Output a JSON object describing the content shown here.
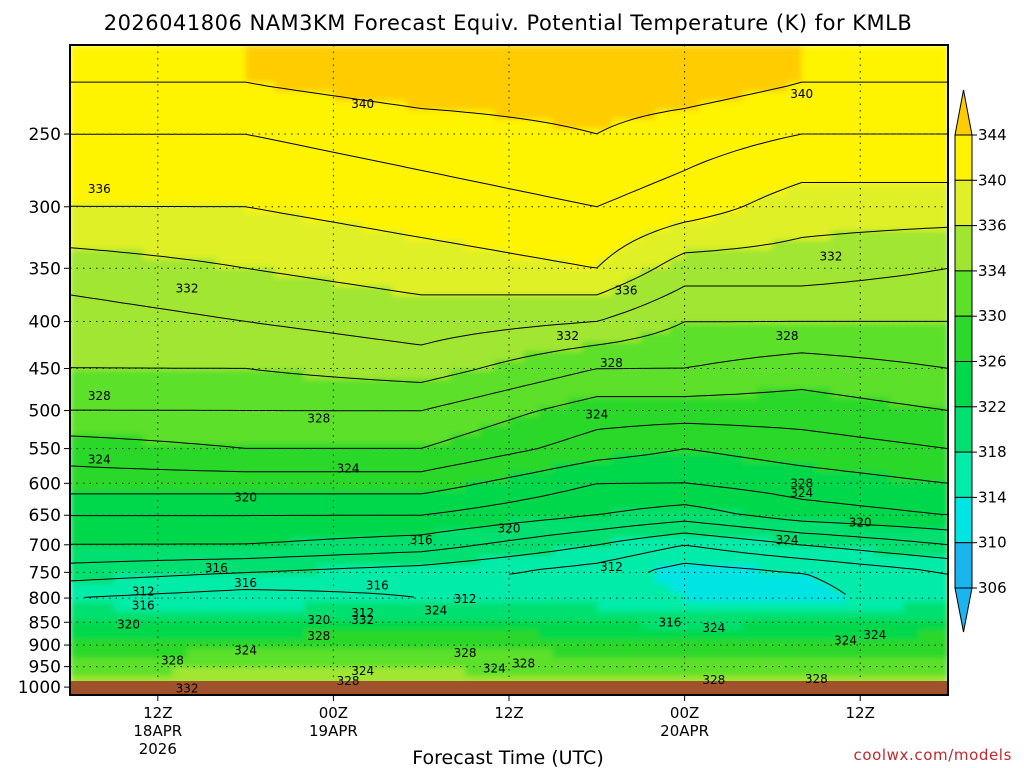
{
  "chart_data": {
    "type": "heatmap",
    "title": "2026041806 NAM3KM Forecast Equiv. Potential Temperature (K) for KMLB",
    "xlabel": "Forecast Time (UTC)",
    "ylabel": "",
    "y_axis": {
      "units": "hPa",
      "scale": "log",
      "inverted": true,
      "ticks": [
        250,
        300,
        350,
        400,
        450,
        500,
        550,
        600,
        650,
        700,
        750,
        800,
        850,
        900,
        950,
        1000
      ],
      "ylim": [
        1020,
        200
      ]
    },
    "x_axis": {
      "ticks": [
        {
          "line1": "12Z",
          "line2": "18APR",
          "line3": "2026",
          "hour": 6
        },
        {
          "line1": "00Z",
          "line2": "19APR",
          "line3": "",
          "hour": 18
        },
        {
          "line1": "12Z",
          "line2": "",
          "line3": "",
          "hour": 30
        },
        {
          "line1": "00Z",
          "line2": "20APR",
          "line3": "",
          "hour": 42
        },
        {
          "line1": "12Z",
          "line2": "",
          "line3": "",
          "hour": 54
        }
      ],
      "xlim_hours": [
        0,
        60
      ]
    },
    "colorbar": {
      "levels": [
        306,
        310,
        314,
        318,
        322,
        326,
        330,
        334,
        336,
        340,
        344
      ],
      "labels": [
        "306",
        "310",
        "314",
        "318",
        "322",
        "326",
        "330",
        "334",
        "336",
        "340",
        "344"
      ],
      "colors": [
        "#1ab4ee",
        "#00e4e4",
        "#00eca8",
        "#00e070",
        "#00d84c",
        "#2cd82c",
        "#5ce02a",
        "#a0e630",
        "#e0f028",
        "#fff400",
        "#ffcc00"
      ]
    },
    "series": [
      {
        "levels_hpa": [
          220,
          250,
          300,
          350,
          400,
          450,
          500,
          550,
          600,
          650,
          700,
          750,
          800,
          850,
          900,
          950,
          1000
        ],
        "profiles": [
          {
            "hour": 0,
            "theta_e": [
              340,
              338,
              336,
              333,
              331,
              330,
              328,
              325,
              323,
              320,
              318,
              315,
              312,
              318,
              324,
              328,
              332
            ]
          },
          {
            "hour": 12,
            "theta_e": [
              340,
              338,
              336,
              334,
              332,
              330,
              328,
              326,
              323,
              320,
              318,
              314,
              311,
              318,
              324,
              330,
              333
            ]
          },
          {
            "hour": 24,
            "theta_e": [
              341,
              339,
              337,
              335,
              333,
              331,
              328,
              326,
              323,
              320,
              317,
              313,
              312,
              320,
              326,
              330,
              332
            ]
          },
          {
            "hour": 36,
            "theta_e": [
              341,
              340,
              338,
              336,
              332,
              328,
              325,
              323,
              320,
              318,
              314,
              311,
              312,
              318,
              324,
              328,
              331
            ]
          },
          {
            "hour": 42,
            "theta_e": [
              341,
              339,
              337,
              333,
              330,
              328,
              325,
              322,
              320,
              317,
              312,
              309,
              310,
              316,
              324,
              328,
              331
            ]
          },
          {
            "hour": 50,
            "theta_e": [
              340,
              338,
              335,
              333,
              330,
              327,
              325,
              323,
              321,
              319,
              314,
              310,
              309,
              318,
              324,
              328,
              331
            ]
          },
          {
            "hour": 60,
            "theta_e": [
              340,
              338,
              335,
              332,
              330,
              328,
              326,
              324,
              322,
              320,
              316,
              312,
              312,
              320,
              324,
              328,
              331
            ]
          }
        ]
      }
    ],
    "contour_labels": [
      {
        "text": "340",
        "hour": 20,
        "p": 232
      },
      {
        "text": "340",
        "hour": 50,
        "p": 226
      },
      {
        "text": "336",
        "hour": 2,
        "p": 287
      },
      {
        "text": "336",
        "hour": 38,
        "p": 370
      },
      {
        "text": "332",
        "hour": 8,
        "p": 368
      },
      {
        "text": "332",
        "hour": 52,
        "p": 340
      },
      {
        "text": "332",
        "hour": 34,
        "p": 415
      },
      {
        "text": "328",
        "hour": 2,
        "p": 482
      },
      {
        "text": "328",
        "hour": 17,
        "p": 510
      },
      {
        "text": "328",
        "hour": 37,
        "p": 444
      },
      {
        "text": "328",
        "hour": 49,
        "p": 415
      },
      {
        "text": "324",
        "hour": 2,
        "p": 565
      },
      {
        "text": "324",
        "hour": 19,
        "p": 578
      },
      {
        "text": "324",
        "hour": 36,
        "p": 505
      },
      {
        "text": "320",
        "hour": 12,
        "p": 622
      },
      {
        "text": "320",
        "hour": 30,
        "p": 672
      },
      {
        "text": "320",
        "hour": 54,
        "p": 662
      },
      {
        "text": "316",
        "hour": 24,
        "p": 692
      },
      {
        "text": "316",
        "hour": 10,
        "p": 742
      },
      {
        "text": "316",
        "hour": 12,
        "p": 770
      },
      {
        "text": "312",
        "hour": 37,
        "p": 740
      },
      {
        "text": "312",
        "hour": 5,
        "p": 787
      },
      {
        "text": "312",
        "hour": 27,
        "p": 802
      },
      {
        "text": "316",
        "hour": 5,
        "p": 815
      },
      {
        "text": "320",
        "hour": 4,
        "p": 855
      },
      {
        "text": "332",
        "hour": 8,
        "p": 1003
      },
      {
        "text": "328",
        "hour": 7,
        "p": 935
      },
      {
        "text": "324",
        "hour": 12,
        "p": 912
      },
      {
        "text": "328",
        "hour": 27,
        "p": 918
      },
      {
        "text": "328",
        "hour": 31,
        "p": 942
      },
      {
        "text": "324",
        "hour": 29,
        "p": 955
      },
      {
        "text": "324",
        "hour": 20,
        "p": 960
      },
      {
        "text": "328",
        "hour": 19,
        "p": 985
      },
      {
        "text": "328",
        "hour": 44,
        "p": 982
      },
      {
        "text": "328",
        "hour": 51,
        "p": 980
      },
      {
        "text": "324",
        "hour": 44,
        "p": 862
      },
      {
        "text": "324",
        "hour": 53,
        "p": 890
      },
      {
        "text": "324",
        "hour": 55,
        "p": 878
      },
      {
        "text": "316",
        "hour": 41,
        "p": 850
      },
      {
        "text": "332",
        "hour": 20,
        "p": 845
      },
      {
        "text": "312",
        "hour": 20,
        "p": 830
      },
      {
        "text": "320",
        "hour": 17,
        "p": 845
      },
      {
        "text": "328",
        "hour": 17,
        "p": 880
      },
      {
        "text": "316",
        "hour": 21,
        "p": 775
      },
      {
        "text": "324",
        "hour": 25,
        "p": 825
      },
      {
        "text": "328",
        "hour": 50,
        "p": 600
      },
      {
        "text": "324",
        "hour": 50,
        "p": 615
      },
      {
        "text": "324",
        "hour": 49,
        "p": 692
      }
    ],
    "grid": true,
    "legend": "colorbar-right"
  },
  "credit": "coolwx.com/models"
}
